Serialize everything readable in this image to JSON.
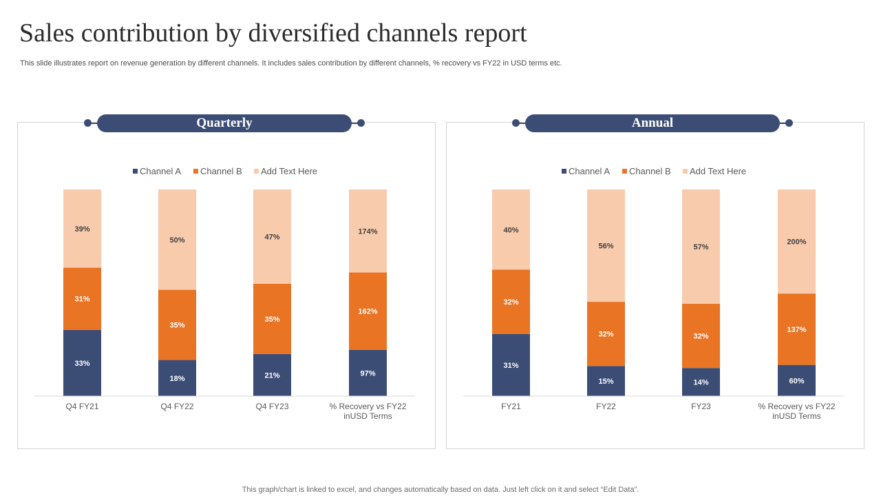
{
  "title": "Sales contribution by diversified channels report",
  "subtitle": "This slide illustrates report on revenue generation by different channels. It includes sales contribution by different channels, % recovery vs FY22 in USD terms etc.",
  "footer": "This graph/chart is linked to excel, and changes automatically based on data. Just left click on it and select “Edit Data”.",
  "colors": {
    "channel_a": "#3c4d75",
    "channel_b": "#e87424",
    "add_text": "#f8cbad",
    "banner": "#3c4d75"
  },
  "chart_data": [
    {
      "type": "bar",
      "stacked": true,
      "title": "Quarterly",
      "legend_position": "top",
      "categories": [
        "Q4 FY21",
        "Q4 FY22",
        "Q4 FY23",
        "% Recovery vs FY22 inUSD Terms"
      ],
      "series": [
        {
          "name": "Channel A",
          "values": [
            33,
            18,
            21,
            97
          ],
          "labels": [
            "33%",
            "18%",
            "21%",
            "97%"
          ]
        },
        {
          "name": "Channel B",
          "values": [
            31,
            35,
            35,
            162
          ],
          "labels": [
            "31%",
            "35%",
            "35%",
            "162%"
          ]
        },
        {
          "name": "Add Text Here",
          "values": [
            39,
            50,
            47,
            174
          ],
          "labels": [
            "39%",
            "50%",
            "47%",
            "174%"
          ]
        }
      ],
      "normalized_percent": true
    },
    {
      "type": "bar",
      "stacked": true,
      "title": "Annual",
      "legend_position": "top",
      "categories": [
        "FY21",
        "FY22",
        "FY23",
        "% Recovery vs FY22 inUSD Terms"
      ],
      "series": [
        {
          "name": "Channel A",
          "values": [
            31,
            15,
            14,
            60
          ],
          "labels": [
            "31%",
            "15%",
            "14%",
            "60%"
          ]
        },
        {
          "name": "Channel B",
          "values": [
            32,
            32,
            32,
            137
          ],
          "labels": [
            "32%",
            "32%",
            "32%",
            "137%"
          ]
        },
        {
          "name": "Add Text Here",
          "values": [
            40,
            56,
            57,
            200
          ],
          "labels": [
            "40%",
            "56%",
            "57%",
            "200%"
          ]
        }
      ],
      "normalized_percent": true
    }
  ]
}
